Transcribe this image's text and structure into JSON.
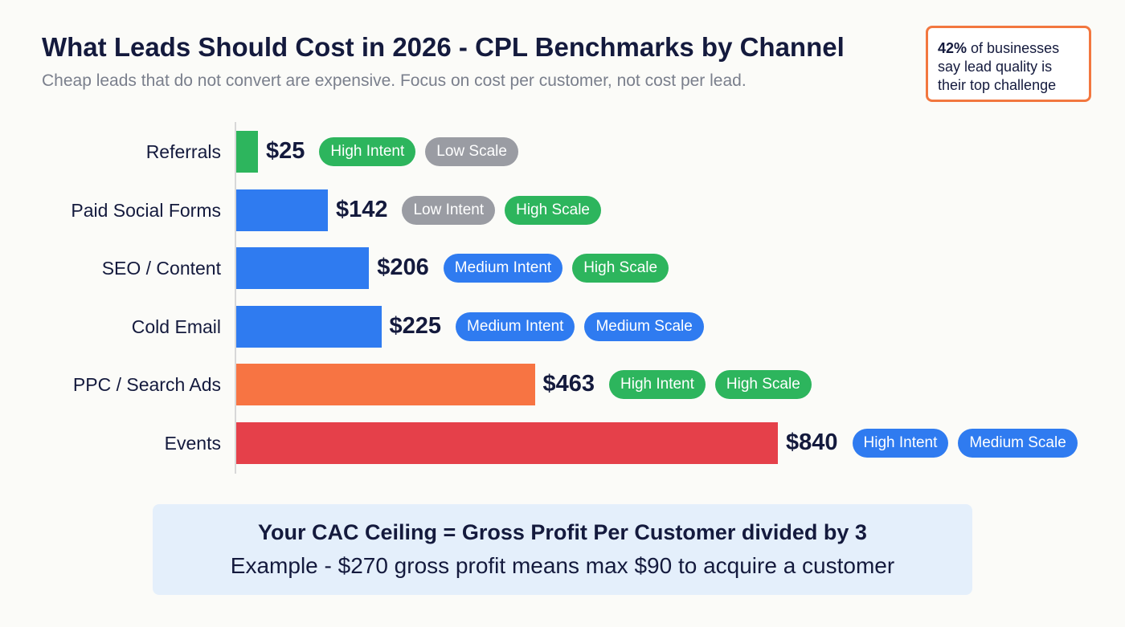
{
  "header": {
    "title": "What Leads Should Cost in 2026 - CPL Benchmarks by Channel",
    "subtitle": "Cheap leads that do not convert are expensive. Focus on cost per customer, not cost per lead."
  },
  "callout": {
    "highlight": "42%",
    "text": " of businesses say lead quality is their top challenge",
    "border_color": "#f2773f"
  },
  "chart_data": {
    "type": "bar",
    "orientation": "horizontal",
    "categories": [
      "Referrals",
      "Paid Social Forms",
      "SEO / Content",
      "Cold Email",
      "PPC / Search Ads",
      "Events"
    ],
    "values": [
      25,
      142,
      206,
      225,
      463,
      840
    ],
    "value_labels": [
      "$25",
      "$142",
      "$206",
      "$225",
      "$463",
      "$840"
    ],
    "bar_colors": [
      "#2db55d",
      "#2f7bf0",
      "#2f7bf0",
      "#2f7bf0",
      "#f77443",
      "#e5404a"
    ],
    "tags": [
      [
        {
          "label": "High Intent",
          "color": "#2db55d"
        },
        {
          "label": "Low Scale",
          "color": "#9a9ca3"
        }
      ],
      [
        {
          "label": "Low Intent",
          "color": "#9a9ca3"
        },
        {
          "label": "High Scale",
          "color": "#2db55d"
        }
      ],
      [
        {
          "label": "Medium Intent",
          "color": "#2f7bf0"
        },
        {
          "label": "High Scale",
          "color": "#2db55d"
        }
      ],
      [
        {
          "label": "Medium Intent",
          "color": "#2f7bf0"
        },
        {
          "label": "Medium Scale",
          "color": "#2f7bf0"
        }
      ],
      [
        {
          "label": "High Intent",
          "color": "#2db55d"
        },
        {
          "label": "High Scale",
          "color": "#2db55d"
        }
      ],
      [
        {
          "label": "High Intent",
          "color": "#2f7bf0"
        },
        {
          "label": "Medium Scale",
          "color": "#2f7bf0"
        }
      ]
    ],
    "title": "",
    "xlabel": "",
    "ylabel": "",
    "grid": false
  },
  "footer": {
    "headline": "Your CAC Ceiling = Gross Profit Per Customer divided by 3",
    "example": "Example - $270 gross profit means max $90 to acquire a customer"
  }
}
